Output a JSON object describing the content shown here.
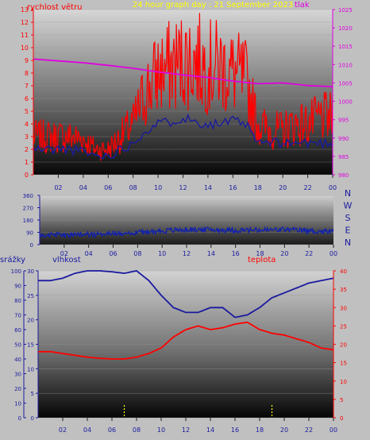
{
  "title": "24 hour graph day : 21 September 2023",
  "colors": {
    "background": "#c0c0c0",
    "wind": "#ff0000",
    "gust_line": "#1a1aa0",
    "pressure": "#e000e0",
    "direction": "#1020b0",
    "humidity": "#1a1aa0",
    "temperature": "#ff0000",
    "rain": "#ffff00",
    "title": "#ffff00",
    "axis_left": "#ff0000",
    "axis_right_pressure": "#e000e0",
    "axis_blue": "#1a1aa0"
  },
  "chart_data": [
    {
      "type": "line",
      "panel": "wind-pressure",
      "title": "24 hour graph day : 21 September 2023",
      "left_label": "rychlost větru",
      "right_label": "tlak",
      "left_ticks": [
        "0",
        "1",
        "2",
        "3",
        "4",
        "5",
        "6",
        "7",
        "8",
        "9",
        "10",
        "11",
        "12",
        "13"
      ],
      "right_ticks": [
        "980",
        "985",
        "990",
        "995",
        "1000",
        "1005",
        "1010",
        "1015",
        "1020",
        "1025"
      ],
      "x_ticks": [
        "02",
        "04",
        "06",
        "08",
        "10",
        "12",
        "14",
        "16",
        "18",
        "20",
        "22",
        "00"
      ],
      "ylim_left": [
        0,
        13
      ],
      "ylim_right": [
        980,
        1025
      ],
      "series": [
        {
          "axis": "left",
          "role": "wind_max",
          "x": [
            0,
            1,
            2,
            3,
            4,
            5,
            6,
            7,
            8,
            9,
            10,
            11,
            12,
            13,
            14,
            15,
            16,
            17,
            18,
            19,
            20,
            21,
            22,
            23,
            24
          ],
          "values": [
            3.0,
            3.0,
            3.0,
            3.0,
            2.8,
            2.0,
            2.0,
            3.0,
            4.0,
            6.5,
            8.0,
            8.5,
            9.0,
            9.0,
            8.5,
            8.5,
            8.0,
            7.5,
            4.0,
            3.5,
            3.5,
            4.0,
            4.0,
            4.5,
            4.5
          ]
        },
        {
          "axis": "left",
          "role": "wind_avg",
          "x": [
            0,
            1,
            2,
            3,
            4,
            5,
            6,
            7,
            8,
            9,
            10,
            11,
            12,
            13,
            14,
            15,
            16,
            17,
            18,
            19,
            20,
            21,
            22,
            23,
            24
          ],
          "values": [
            2.0,
            2.0,
            2.0,
            2.0,
            1.8,
            1.5,
            1.5,
            2.0,
            2.5,
            3.5,
            4.0,
            4.2,
            4.5,
            4.2,
            4.0,
            4.0,
            4.2,
            4.0,
            2.5,
            2.5,
            2.5,
            2.5,
            2.5,
            2.5,
            2.5
          ]
        },
        {
          "axis": "right",
          "role": "pressure",
          "x": [
            0,
            2,
            4,
            6,
            8,
            10,
            12,
            14,
            16,
            18,
            20,
            22,
            24
          ],
          "values": [
            1011.5,
            1011.0,
            1010.5,
            1009.8,
            1009.0,
            1008.0,
            1007.2,
            1006.5,
            1005.5,
            1004.8,
            1005.0,
            1004.3,
            1004.0
          ]
        }
      ]
    },
    {
      "type": "line",
      "panel": "wind-direction",
      "direction_labels": [
        "N",
        "W",
        "S",
        "E",
        "N"
      ],
      "y_ticks": [
        "0",
        "90",
        "180",
        "270",
        "360"
      ],
      "ylim": [
        0,
        360
      ],
      "x_ticks": [
        "02",
        "04",
        "06",
        "08",
        "10",
        "12",
        "14",
        "16",
        "18",
        "20",
        "22",
        "00"
      ],
      "series": [
        {
          "role": "direction",
          "x": [
            0,
            2,
            4,
            6,
            8,
            10,
            12,
            14,
            16,
            18,
            20,
            22,
            24
          ],
          "values": [
            70,
            70,
            75,
            80,
            90,
            100,
            110,
            110,
            105,
            105,
            110,
            100,
            95
          ]
        }
      ]
    },
    {
      "type": "line",
      "panel": "humidity-temperature",
      "rain_label": "srážky",
      "humidity_label": "vlhkost",
      "temperature_label": "teplota",
      "rain_ticks": [
        "0",
        "10",
        "20",
        "30",
        "40",
        "50",
        "60",
        "70",
        "80",
        "90",
        "100"
      ],
      "humidity_ticks": [
        "0",
        "5",
        "10",
        "15",
        "20",
        "25",
        "30"
      ],
      "temperature_ticks": [
        "0",
        "5",
        "10",
        "15",
        "20",
        "25",
        "30",
        "35",
        "40"
      ],
      "ylim_rain": [
        0,
        100
      ],
      "ylim_humidity": [
        0,
        30
      ],
      "ylim_temperature": [
        0,
        40
      ],
      "x_ticks": [
        "02",
        "04",
        "06",
        "08",
        "10",
        "12",
        "14",
        "16",
        "18",
        "20",
        "22",
        "00"
      ],
      "series": [
        {
          "axis": "humidity",
          "role": "humidity",
          "x": [
            0,
            1,
            2,
            3,
            4,
            5,
            6,
            7,
            8,
            9,
            10,
            11,
            12,
            13,
            14,
            15,
            16,
            17,
            18,
            19,
            20,
            21,
            22,
            23,
            24
          ],
          "values": [
            28.0,
            28.0,
            28.5,
            29.5,
            30.0,
            30.0,
            29.8,
            29.5,
            30.0,
            28.0,
            25.0,
            22.5,
            21.5,
            21.5,
            22.5,
            22.5,
            20.5,
            21.0,
            22.5,
            24.5,
            25.5,
            26.5,
            27.5,
            28.0,
            28.5
          ]
        },
        {
          "axis": "temperature",
          "role": "temperature",
          "x": [
            0,
            1,
            2,
            3,
            4,
            5,
            6,
            7,
            8,
            9,
            10,
            11,
            12,
            13,
            14,
            15,
            16,
            17,
            18,
            19,
            20,
            21,
            22,
            23,
            24
          ],
          "values": [
            18.0,
            18.0,
            17.5,
            17.0,
            16.5,
            16.2,
            16.0,
            16.0,
            16.5,
            17.5,
            19.0,
            22.0,
            24.0,
            25.0,
            24.0,
            24.5,
            25.5,
            26.0,
            24.0,
            23.0,
            22.5,
            21.5,
            20.5,
            19.0,
            18.5
          ]
        },
        {
          "axis": "rain",
          "role": "rain_marker",
          "x": [
            7,
            19
          ],
          "values": [
            0,
            0
          ]
        }
      ]
    }
  ]
}
